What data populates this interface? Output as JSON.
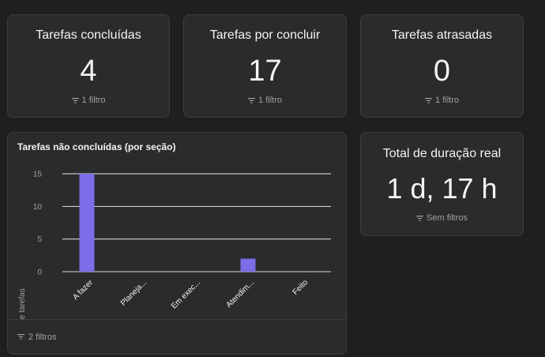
{
  "cards": [
    {
      "title": "Tarefas concluídas",
      "value": "4",
      "filter": "1 filtro"
    },
    {
      "title": "Tarefas por concluir",
      "value": "17",
      "filter": "1 filtro"
    },
    {
      "title": "Tarefas atrasadas",
      "value": "0",
      "filter": "1 filtro"
    }
  ],
  "duration_card": {
    "title": "Total de duração real",
    "value": "1 d, 17 h",
    "filter": "Sem filtros"
  },
  "chart_card": {
    "filter": "2 filtros"
  },
  "chart_data": {
    "type": "bar",
    "title": "Tarefas não concluídas (por seção)",
    "ylabel": "Número de tarefas",
    "xlabel": "",
    "categories": [
      "A fazer",
      "Planeja...",
      "Em exec...",
      "Atendim...",
      "Feito"
    ],
    "values": [
      15,
      0,
      0,
      2,
      0
    ],
    "ylim": [
      0,
      15
    ],
    "yticks": [
      0,
      5,
      10,
      15
    ],
    "grid": true,
    "bar_color": "#7b6ee6"
  },
  "colors": {
    "background": "#1e1f21",
    "card": "#2a2b2d",
    "border": "#3d3e40",
    "accent": "#7b6ee6"
  }
}
